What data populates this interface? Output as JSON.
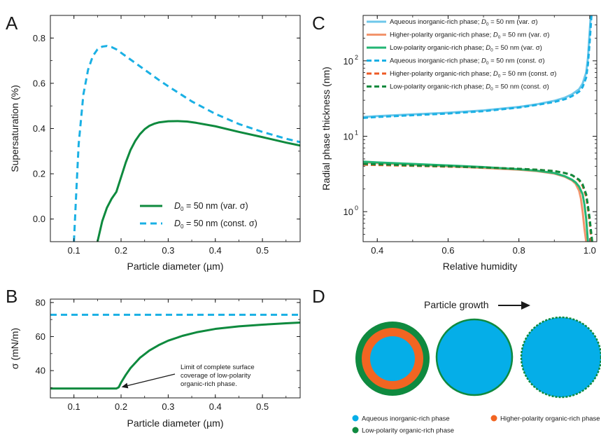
{
  "panels": {
    "A": "A",
    "B": "B",
    "C": "C",
    "D": "D"
  },
  "colors": {
    "green": "#0e8a3e",
    "cyan": "#1ab0e4",
    "sky": "#6ec7ea",
    "salmon": "#f2946c",
    "green_light": "#22b573",
    "orange": "#ee5a24",
    "aqueous": "#05aee8",
    "higher": "#f26522",
    "low": "#0f8a3f"
  },
  "chart_data": [
    {
      "panel": "A",
      "type": "line",
      "xlabel": "Particle diameter (µm)",
      "ylabel": "Supersaturation (%)",
      "xlim": [
        0.05,
        0.58
      ],
      "ylim": [
        -0.1,
        0.9
      ],
      "xticks": [
        0.1,
        0.2,
        0.3,
        0.4,
        0.5
      ],
      "xtick_labels": [
        "0.1",
        "0.2",
        "0.3",
        "0.4",
        "0.5"
      ],
      "yticks": [
        0.0,
        0.2,
        0.4,
        0.6,
        0.8
      ],
      "ytick_labels": [
        "0.0",
        "0.2",
        "0.4",
        "0.6",
        "0.8"
      ],
      "legend_position": "bottom-right",
      "series": [
        {
          "legend_prefix": "D",
          "legend_sub": "0",
          "legend_suffix": " = 50 nm  (var. σ)",
          "style": "solid",
          "x": [
            0.15,
            0.16,
            0.17,
            0.18,
            0.19,
            0.2,
            0.21,
            0.22,
            0.23,
            0.24,
            0.25,
            0.26,
            0.27,
            0.28,
            0.3,
            0.32,
            0.34,
            0.36,
            0.4,
            0.45,
            0.5,
            0.55,
            0.58
          ],
          "y": [
            -0.1,
            -0.01,
            0.05,
            0.09,
            0.12,
            0.185,
            0.25,
            0.305,
            0.345,
            0.375,
            0.397,
            0.412,
            0.421,
            0.427,
            0.432,
            0.433,
            0.431,
            0.425,
            0.41,
            0.385,
            0.362,
            0.338,
            0.325
          ]
        },
        {
          "legend_prefix": "D",
          "legend_sub": "0",
          "legend_suffix": " = 50 nm  (const. σ)",
          "style": "dashed",
          "x": [
            0.1,
            0.105,
            0.11,
            0.12,
            0.13,
            0.14,
            0.15,
            0.16,
            0.17,
            0.18,
            0.19,
            0.2,
            0.22,
            0.25,
            0.28,
            0.3,
            0.35,
            0.4,
            0.45,
            0.5,
            0.55,
            0.58
          ],
          "y": [
            -0.1,
            0.12,
            0.33,
            0.55,
            0.66,
            0.72,
            0.75,
            0.762,
            0.765,
            0.76,
            0.75,
            0.735,
            0.705,
            0.66,
            0.615,
            0.587,
            0.52,
            0.465,
            0.42,
            0.385,
            0.355,
            0.34
          ]
        }
      ]
    },
    {
      "panel": "B",
      "type": "line",
      "xlabel": "Particle diameter (µm)",
      "ylabel": "σ (mN/m)",
      "xlim": [
        0.05,
        0.58
      ],
      "ylim": [
        24,
        82
      ],
      "xticks": [
        0.1,
        0.2,
        0.3,
        0.4,
        0.5
      ],
      "xtick_labels": [
        "0.1",
        "0.2",
        "0.3",
        "0.4",
        "0.5"
      ],
      "yticks": [
        40,
        60,
        80
      ],
      "ytick_labels": [
        "40",
        "60",
        "80"
      ],
      "annotation": {
        "lines": [
          "Limit of complete surface",
          "coverage of low-polarity",
          "organic-rich phase."
        ],
        "point": [
          0.195,
          29.5
        ]
      },
      "series": [
        {
          "style": "solid",
          "x": [
            0.05,
            0.1,
            0.15,
            0.19,
            0.195,
            0.2,
            0.21,
            0.22,
            0.24,
            0.26,
            0.28,
            0.3,
            0.33,
            0.36,
            0.4,
            0.45,
            0.5,
            0.55,
            0.58
          ],
          "y": [
            29.5,
            29.5,
            29.5,
            29.5,
            30.2,
            33,
            37.5,
            41.5,
            47.5,
            51.8,
            55,
            57.6,
            60.4,
            62.5,
            64.5,
            66,
            67,
            67.8,
            68.2
          ]
        },
        {
          "style": "dashed",
          "x": [
            0.05,
            0.58
          ],
          "y": [
            72.8,
            72.8
          ]
        }
      ]
    },
    {
      "panel": "C",
      "type": "line",
      "xlabel": "Relative humidity",
      "ylabel": "Radial phase thickness (nm)",
      "xlim": [
        0.36,
        1.02
      ],
      "ylog": true,
      "ylim": [
        0.4,
        400
      ],
      "xticks": [
        0.4,
        0.6,
        0.8,
        1.0
      ],
      "xtick_labels": [
        "0.4",
        "0.6",
        "0.8",
        "1.0"
      ],
      "yticks": [
        1,
        10,
        100
      ],
      "ytick_labels": [
        "10",
        "10",
        "10"
      ],
      "ytick_exponents": [
        "0",
        "1",
        "2"
      ],
      "legend_position": "top-left",
      "series": [
        {
          "legend_main": "Aqueous inorganic-rich phase; ",
          "legend_sub": "0",
          "legend_suffix": " = 50 nm (var. σ)",
          "style": "solid",
          "x": [
            0.36,
            0.4,
            0.5,
            0.6,
            0.7,
            0.8,
            0.85,
            0.9,
            0.93,
            0.95,
            0.97,
            0.98,
            0.99,
            0.995,
            1.0,
            1.003
          ],
          "y": [
            18,
            18.5,
            19.5,
            20.5,
            22,
            24.5,
            26.5,
            29.5,
            32.5,
            36,
            42,
            50,
            70,
            110,
            250,
            400
          ]
        },
        {
          "legend_main": "Higher-polarity organic-rich phase; ",
          "legend_sub": "0",
          "legend_suffix": " = 50 nm (var. σ)",
          "style": "solid",
          "x": [
            0.36,
            0.4,
            0.5,
            0.6,
            0.7,
            0.8,
            0.85,
            0.9,
            0.93,
            0.95,
            0.96,
            0.97,
            0.975,
            0.98,
            0.985,
            0.99
          ],
          "y": [
            4.5,
            4.4,
            4.2,
            4.0,
            3.8,
            3.6,
            3.45,
            3.2,
            2.9,
            2.6,
            2.35,
            1.9,
            1.5,
            1.0,
            0.6,
            0.4
          ]
        },
        {
          "legend_main": "Low-polarity organic-rich phase; ",
          "legend_sub": "0",
          "legend_suffix": " = 50 nm (var. σ)",
          "style": "solid",
          "x": [
            0.36,
            0.4,
            0.5,
            0.6,
            0.7,
            0.8,
            0.85,
            0.9,
            0.93,
            0.95,
            0.96,
            0.97,
            0.98,
            0.985,
            0.99,
            0.995
          ],
          "y": [
            4.6,
            4.5,
            4.3,
            4.1,
            3.9,
            3.65,
            3.5,
            3.25,
            2.95,
            2.65,
            2.45,
            2.15,
            1.7,
            1.25,
            0.8,
            0.4
          ]
        },
        {
          "legend_main": "Aqueous inorganic-rich phase; ",
          "legend_sub": "0",
          "legend_suffix": " = 50 nm (const. σ)",
          "style": "dashed",
          "x": [
            0.36,
            0.4,
            0.5,
            0.6,
            0.7,
            0.8,
            0.85,
            0.9,
            0.93,
            0.95,
            0.97,
            0.98,
            0.99,
            0.995,
            1.0,
            1.005
          ],
          "y": [
            17.5,
            18,
            19,
            20,
            21.5,
            24,
            26,
            28.5,
            31,
            34,
            39,
            45,
            60,
            90,
            180,
            400
          ]
        },
        {
          "legend_main": "Higher-polarity organic-rich phase; ",
          "legend_sub": "0",
          "legend_suffix": " = 50 nm (const. σ)",
          "style": "dashed",
          "x": [
            0.36,
            0.4,
            0.5,
            0.6,
            0.7,
            0.8,
            0.85,
            0.9,
            0.93,
            0.95,
            0.97,
            0.98,
            0.99,
            0.995,
            1.0,
            1.005
          ],
          "y": [
            4.2,
            4.15,
            4.05,
            3.95,
            3.85,
            3.7,
            3.6,
            3.45,
            3.25,
            3.05,
            2.6,
            2.2,
            1.6,
            1.1,
            0.7,
            0.4
          ]
        },
        {
          "legend_main": "Low-polarity organic-rich phase; ",
          "legend_sub": "0",
          "legend_suffix": " = 50 nm (const. σ)",
          "style": "dashed",
          "x": [
            0.36,
            0.4,
            0.5,
            0.6,
            0.7,
            0.8,
            0.85,
            0.9,
            0.93,
            0.95,
            0.97,
            0.98,
            0.99,
            0.995,
            1.0,
            1.007
          ],
          "y": [
            4.3,
            4.25,
            4.1,
            4.0,
            3.85,
            3.7,
            3.6,
            3.45,
            3.25,
            3.05,
            2.65,
            2.3,
            1.7,
            1.2,
            0.8,
            0.4
          ]
        }
      ]
    }
  ],
  "schematic": {
    "title": "Particle growth",
    "legend": [
      {
        "label": "Aqueous inorganic-rich phase",
        "color": "#05aee8"
      },
      {
        "label": "Higher-polarity organic-rich phase",
        "color": "#f26522"
      },
      {
        "label": "Low-polarity organic-rich phase",
        "color": "#0f8a3f"
      }
    ]
  }
}
